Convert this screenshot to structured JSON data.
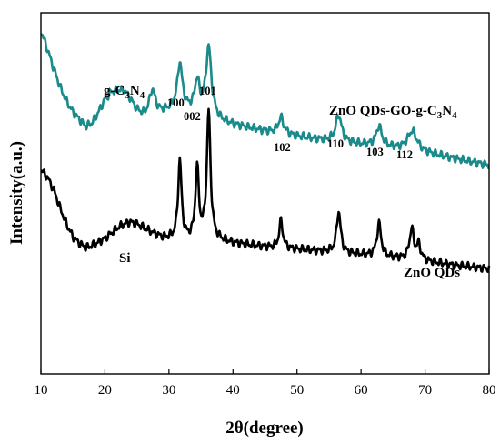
{
  "chart_data": {
    "type": "line",
    "xlabel": "2θ(degree)",
    "ylabel": "Intensity(a.u.)",
    "xlim": [
      10,
      80
    ],
    "ylim": [
      0,
      10
    ],
    "x_ticks": [
      10,
      20,
      30,
      40,
      50,
      60,
      70,
      80
    ],
    "y_ticks_visible": false,
    "grid": false,
    "series": [
      {
        "name": "ZnO QDs-GO-g-C3N4",
        "color": "#1a8a8a",
        "baseline": [
          [
            10,
            9.5
          ],
          [
            11,
            9.0
          ],
          [
            12,
            8.45
          ],
          [
            13,
            7.95
          ],
          [
            14,
            7.55
          ],
          [
            15,
            7.25
          ],
          [
            16,
            7.05
          ],
          [
            17,
            6.85
          ],
          [
            18,
            6.95
          ],
          [
            19,
            7.25
          ],
          [
            20,
            7.6
          ],
          [
            21,
            7.8
          ],
          [
            22,
            7.85
          ],
          [
            23,
            7.85
          ],
          [
            24,
            7.6
          ],
          [
            25,
            7.3
          ],
          [
            26,
            7.15
          ],
          [
            27,
            7.15
          ],
          [
            28,
            7.2
          ],
          [
            29,
            7.25
          ],
          [
            30,
            7.3
          ],
          [
            31,
            7.35
          ],
          [
            32,
            7.35
          ],
          [
            33,
            7.3
          ],
          [
            34,
            7.25
          ],
          [
            35,
            7.2
          ],
          [
            36,
            7.2
          ],
          [
            37,
            7.1
          ],
          [
            38,
            7.0
          ],
          [
            40,
            6.9
          ],
          [
            45,
            6.72
          ],
          [
            50,
            6.58
          ],
          [
            55,
            6.45
          ],
          [
            60,
            6.35
          ],
          [
            65,
            6.25
          ],
          [
            70,
            6.12
          ],
          [
            75,
            5.95
          ],
          [
            80,
            5.78
          ]
        ],
        "peaks": [
          {
            "center": 27.4,
            "height": 0.7,
            "width": 0.55
          },
          {
            "center": 31.7,
            "height": 1.25,
            "width": 0.45
          },
          {
            "center": 34.4,
            "height": 0.85,
            "width": 0.45
          },
          {
            "center": 36.2,
            "height": 1.85,
            "width": 0.5
          },
          {
            "center": 47.5,
            "height": 0.45,
            "width": 0.5
          },
          {
            "center": 56.5,
            "height": 0.75,
            "width": 0.55
          },
          {
            "center": 62.8,
            "height": 0.55,
            "width": 0.55
          },
          {
            "center": 68.0,
            "height": 0.55,
            "width": 0.9
          }
        ]
      },
      {
        "name": "ZnO QDs",
        "color": "#000000",
        "baseline": [
          [
            10,
            5.65
          ],
          [
            11,
            5.45
          ],
          [
            12,
            5.1
          ],
          [
            13,
            4.6
          ],
          [
            14,
            4.15
          ],
          [
            15,
            3.8
          ],
          [
            16,
            3.62
          ],
          [
            17,
            3.5
          ],
          [
            18,
            3.55
          ],
          [
            19,
            3.65
          ],
          [
            20,
            3.75
          ],
          [
            21,
            3.9
          ],
          [
            22,
            4.05
          ],
          [
            23,
            4.15
          ],
          [
            24,
            4.2
          ],
          [
            25,
            4.15
          ],
          [
            26,
            4.05
          ],
          [
            27,
            3.95
          ],
          [
            28,
            3.85
          ],
          [
            29,
            3.78
          ],
          [
            30,
            3.75
          ],
          [
            32,
            3.72
          ],
          [
            35,
            3.7
          ],
          [
            38,
            3.68
          ],
          [
            40,
            3.62
          ],
          [
            45,
            3.52
          ],
          [
            50,
            3.45
          ],
          [
            55,
            3.38
          ],
          [
            60,
            3.3
          ],
          [
            65,
            3.22
          ],
          [
            70,
            3.12
          ],
          [
            75,
            3.0
          ],
          [
            80,
            2.92
          ]
        ],
        "peaks": [
          {
            "center": 31.7,
            "height": 2.2,
            "width": 0.32
          },
          {
            "center": 34.4,
            "height": 1.95,
            "width": 0.32
          },
          {
            "center": 36.2,
            "height": 3.55,
            "width": 0.35
          },
          {
            "center": 47.5,
            "height": 0.75,
            "width": 0.35
          },
          {
            "center": 56.5,
            "height": 1.15,
            "width": 0.38
          },
          {
            "center": 62.8,
            "height": 0.9,
            "width": 0.4
          },
          {
            "center": 67.9,
            "height": 0.85,
            "width": 0.4
          },
          {
            "center": 69.0,
            "height": 0.4,
            "width": 0.4
          }
        ]
      }
    ],
    "annotations": {
      "gcn": {
        "base": "g-C",
        "sub1": "3",
        "mid": "N",
        "sub2": "4"
      },
      "composite": {
        "t1": "ZnO QDs-GO-g-C",
        "s1": "3",
        "t2": "N",
        "s2": "4"
      },
      "zno": "ZnO QDs",
      "si": "Si",
      "peaks": [
        "100",
        "002",
        "101",
        "102",
        "110",
        "103",
        "112"
      ]
    }
  }
}
